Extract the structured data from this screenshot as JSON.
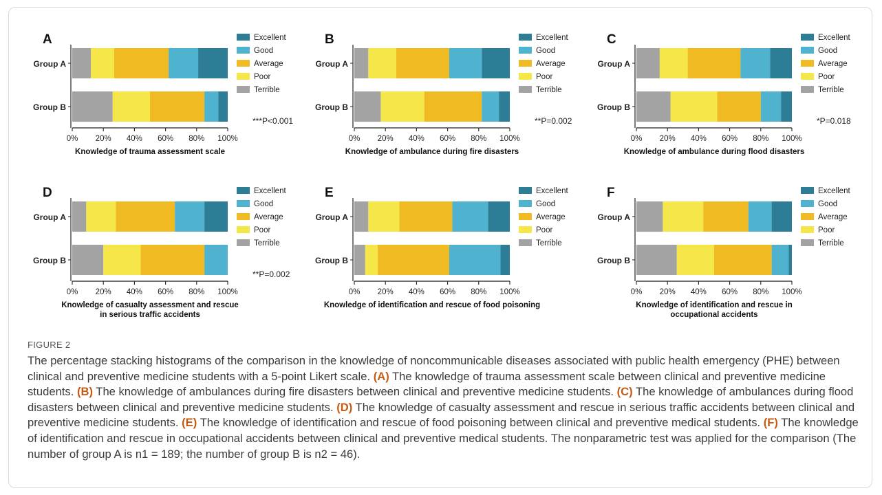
{
  "figure": {
    "label": "FIGURE 2",
    "caption_parts": [
      {
        "t": "The percentage stacking histograms of the comparison in the knowledge of noncommunicable diseases associated with public health emergency (PHE) between clinical and preventive medicine students with a 5-point Likert scale. "
      },
      {
        "b": "(A)"
      },
      {
        "t": " The knowledge of trauma assessment scale between clinical and preventive medicine students. "
      },
      {
        "b": "(B)"
      },
      {
        "t": " The knowledge of ambulances during fire disasters between clinical and preventive medicine students. "
      },
      {
        "b": "(C)"
      },
      {
        "t": " The knowledge of ambulances during flood disasters between clinical and preventive medicine students. "
      },
      {
        "b": "(D)"
      },
      {
        "t": " The knowledge of casualty assessment and rescue in serious traffic accidents between clinical and preventive medicine students. "
      },
      {
        "b": "(E)"
      },
      {
        "t": " The knowledge of identification and rescue of food poisoning between clinical and preventive medical students. "
      },
      {
        "b": "(F)"
      },
      {
        "t": " The knowledge of identification and rescue in occupational accidents between clinical and preventive medical students. The nonparametric test was applied for the comparison (The number of group A is n1 = 189; the number of group B is n2 = 46)."
      }
    ]
  },
  "colors": {
    "Terrible": "#a3a3a3",
    "Poor": "#f5e64a",
    "Average": "#f0bb22",
    "Good": "#4fb3d0",
    "Excellent": "#2e7d96"
  },
  "chart_data": [
    {
      "type": "bar",
      "panel": "A",
      "xlabel": [
        "Knowledge of trauma assessment scale"
      ],
      "categories": [
        "Group A",
        "Group B"
      ],
      "series": [
        {
          "name": "Terrible",
          "values": [
            12,
            26
          ]
        },
        {
          "name": "Poor",
          "values": [
            15,
            24
          ]
        },
        {
          "name": "Average",
          "values": [
            35,
            35
          ]
        },
        {
          "name": "Good",
          "values": [
            19,
            9
          ]
        },
        {
          "name": "Excellent",
          "values": [
            19,
            6
          ]
        }
      ],
      "xlim": [
        0,
        100
      ],
      "ticks": [
        "0%",
        "20%",
        "40%",
        "60%",
        "80%",
        "100%"
      ],
      "annotation": "***P<0.001",
      "legend": "right"
    },
    {
      "type": "bar",
      "panel": "B",
      "xlabel": [
        "Knowledge of ambulance during fire disasters"
      ],
      "categories": [
        "Group A",
        "Group B"
      ],
      "series": [
        {
          "name": "Terrible",
          "values": [
            9,
            17
          ]
        },
        {
          "name": "Poor",
          "values": [
            18,
            28
          ]
        },
        {
          "name": "Average",
          "values": [
            34,
            37
          ]
        },
        {
          "name": "Good",
          "values": [
            21,
            11
          ]
        },
        {
          "name": "Excellent",
          "values": [
            18,
            7
          ]
        }
      ],
      "xlim": [
        0,
        100
      ],
      "ticks": [
        "0%",
        "20%",
        "40%",
        "60%",
        "80%",
        "100%"
      ],
      "annotation": "**P=0.002",
      "legend": "right"
    },
    {
      "type": "bar",
      "panel": "C",
      "xlabel": [
        "Knowledge of ambulance during flood disasters"
      ],
      "categories": [
        "Group A",
        "Group B"
      ],
      "series": [
        {
          "name": "Terrible",
          "values": [
            15,
            22
          ]
        },
        {
          "name": "Poor",
          "values": [
            18,
            30
          ]
        },
        {
          "name": "Average",
          "values": [
            34,
            28
          ]
        },
        {
          "name": "Good",
          "values": [
            19,
            13
          ]
        },
        {
          "name": "Excellent",
          "values": [
            14,
            7
          ]
        }
      ],
      "xlim": [
        0,
        100
      ],
      "ticks": [
        "0%",
        "20%",
        "40%",
        "60%",
        "80%",
        "100%"
      ],
      "annotation": "*P=0.018",
      "legend": "right"
    },
    {
      "type": "bar",
      "panel": "D",
      "xlabel": [
        "Knowledge of casualty assessment and rescue",
        "in serious traffic accidents"
      ],
      "categories": [
        "Group A",
        "Group B"
      ],
      "series": [
        {
          "name": "Terrible",
          "values": [
            9,
            20
          ]
        },
        {
          "name": "Poor",
          "values": [
            19,
            24
          ]
        },
        {
          "name": "Average",
          "values": [
            38,
            41
          ]
        },
        {
          "name": "Good",
          "values": [
            19,
            15
          ]
        },
        {
          "name": "Excellent",
          "values": [
            15,
            0
          ]
        }
      ],
      "xlim": [
        0,
        100
      ],
      "ticks": [
        "0%",
        "20%",
        "40%",
        "60%",
        "80%",
        "100%"
      ],
      "annotation": "**P=0.002",
      "legend": "right"
    },
    {
      "type": "bar",
      "panel": "E",
      "xlabel": [
        "Knowledge of identification and rescue of food poisoning"
      ],
      "categories": [
        "Group A",
        "Group B"
      ],
      "series": [
        {
          "name": "Terrible",
          "values": [
            9,
            7
          ]
        },
        {
          "name": "Poor",
          "values": [
            20,
            8
          ]
        },
        {
          "name": "Average",
          "values": [
            34,
            46
          ]
        },
        {
          "name": "Good",
          "values": [
            23,
            33
          ]
        },
        {
          "name": "Excellent",
          "values": [
            14,
            6
          ]
        }
      ],
      "xlim": [
        0,
        100
      ],
      "ticks": [
        "0%",
        "20%",
        "40%",
        "60%",
        "80%",
        "100%"
      ],
      "annotation": "",
      "legend": "right"
    },
    {
      "type": "bar",
      "panel": "F",
      "xlabel": [
        "Knowledge of identification and rescue in",
        "occupational accidents"
      ],
      "categories": [
        "Group A",
        "Group B"
      ],
      "series": [
        {
          "name": "Terrible",
          "values": [
            17,
            26
          ]
        },
        {
          "name": "Poor",
          "values": [
            26,
            24
          ]
        },
        {
          "name": "Average",
          "values": [
            29,
            37
          ]
        },
        {
          "name": "Good",
          "values": [
            15,
            11
          ]
        },
        {
          "name": "Excellent",
          "values": [
            13,
            2
          ]
        }
      ],
      "xlim": [
        0,
        100
      ],
      "ticks": [
        "0%",
        "20%",
        "40%",
        "60%",
        "80%",
        "100%"
      ],
      "annotation": "",
      "legend": "right"
    }
  ]
}
